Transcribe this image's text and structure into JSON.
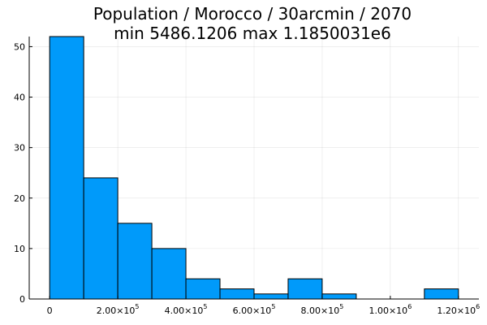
{
  "chart_data": {
    "type": "bar",
    "title_line1": "Population / Morocco / 30arcmin / 2070",
    "title_line2": "min 5486.1206  max 1.1850031e6",
    "bar_color": "#009AFA",
    "bin_width": 100000,
    "bins": [
      {
        "start": 0,
        "end": 100000,
        "count": 52
      },
      {
        "start": 100000,
        "end": 200000,
        "count": 24
      },
      {
        "start": 200000,
        "end": 300000,
        "count": 15
      },
      {
        "start": 300000,
        "end": 400000,
        "count": 10
      },
      {
        "start": 400000,
        "end": 500000,
        "count": 4
      },
      {
        "start": 500000,
        "end": 600000,
        "count": 2
      },
      {
        "start": 600000,
        "end": 700000,
        "count": 1
      },
      {
        "start": 700000,
        "end": 800000,
        "count": 4
      },
      {
        "start": 800000,
        "end": 900000,
        "count": 1
      },
      {
        "start": 900000,
        "end": 1000000,
        "count": 0
      },
      {
        "start": 1000000,
        "end": 1100000,
        "count": 0
      },
      {
        "start": 1100000,
        "end": 1200000,
        "count": 2
      }
    ],
    "xlim": [
      -60000,
      1260000
    ],
    "ylim": [
      0,
      52
    ],
    "x_ticks": [
      {
        "value": 0,
        "mantissa": "0",
        "exponent": ""
      },
      {
        "value": 200000,
        "mantissa": "2.00×10",
        "exponent": "5"
      },
      {
        "value": 400000,
        "mantissa": "4.00×10",
        "exponent": "5"
      },
      {
        "value": 600000,
        "mantissa": "6.00×10",
        "exponent": "5"
      },
      {
        "value": 800000,
        "mantissa": "8.00×10",
        "exponent": "5"
      },
      {
        "value": 1000000,
        "mantissa": "1.00×10",
        "exponent": "6"
      },
      {
        "value": 1200000,
        "mantissa": "1.20×10",
        "exponent": "6"
      }
    ],
    "y_ticks": [
      {
        "value": 0,
        "label": "0"
      },
      {
        "value": 10,
        "label": "10"
      },
      {
        "value": 20,
        "label": "20"
      },
      {
        "value": 30,
        "label": "30"
      },
      {
        "value": 40,
        "label": "40"
      },
      {
        "value": 50,
        "label": "50"
      }
    ],
    "grid": true,
    "legend": false
  }
}
